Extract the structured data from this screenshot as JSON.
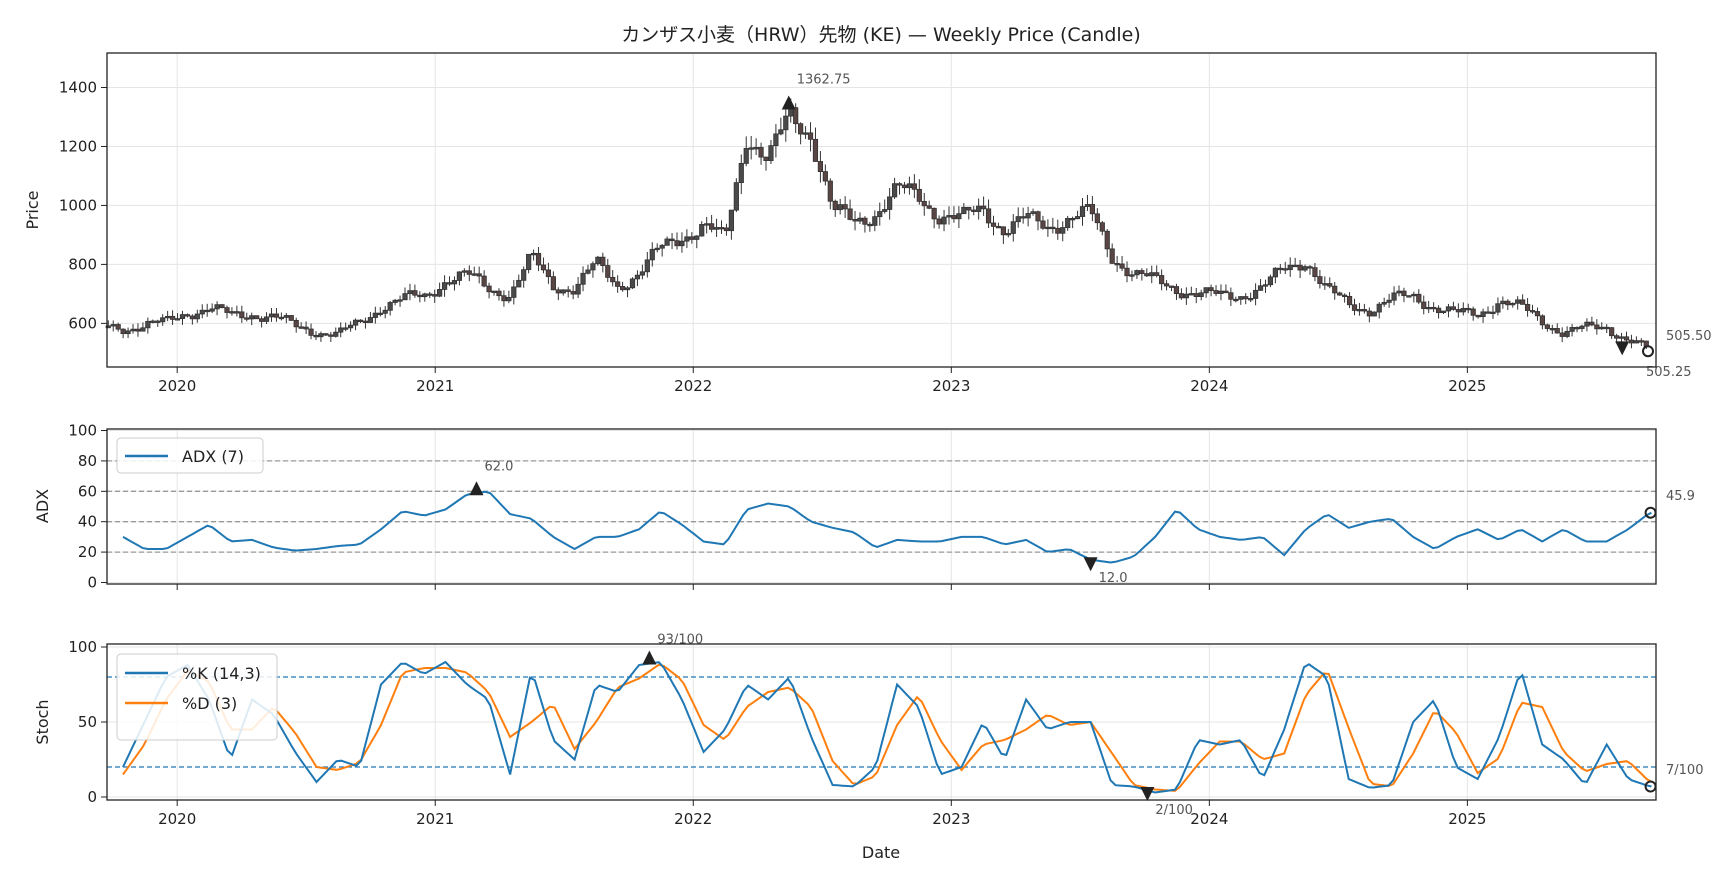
{
  "chart_data": [
    {
      "type": "candlestick",
      "title": "カンザス小麦（HRW）先物 (KE) — Weekly Price (Candle)",
      "ylabel": "Price",
      "ylim": [
        452,
        1517
      ],
      "yticks": [
        600,
        800,
        1000,
        1200,
        1400
      ],
      "monthly_close_start": "2019-10",
      "monthly_close": [
        585,
        595,
        600,
        640,
        650,
        625,
        635,
        620,
        590,
        575,
        560,
        600,
        660,
        680,
        690,
        750,
        760,
        720,
        700,
        820,
        730,
        720,
        800,
        730,
        770,
        850,
        900,
        930,
        880,
        1250,
        1150,
        1300,
        1250,
        980,
        940,
        980,
        1050,
        1030,
        970,
        950,
        990,
        920,
        950,
        930,
        960,
        970,
        830,
        770,
        740,
        720,
        700,
        690,
        700,
        720,
        780,
        820,
        710,
        660,
        650,
        680,
        690,
        660,
        630,
        630,
        680,
        650,
        610,
        570,
        580,
        590,
        545,
        505.5
      ],
      "annotations": {
        "max_label": "1362.75",
        "max_value": 1362.75,
        "max_x": 2022.37,
        "last_close_label": "505.50",
        "last_low_label": "505.25",
        "last_close": 505.5
      }
    },
    {
      "type": "line",
      "ylabel": "ADX",
      "ylim": [
        -1,
        101
      ],
      "yticks": [
        0,
        20,
        40,
        60,
        80,
        100
      ],
      "hlines": [
        20,
        40,
        60,
        80
      ],
      "legend": [
        "ADX (7)"
      ],
      "legend_position": "upper-left",
      "series": [
        {
          "name": "ADX (7)",
          "color": "#1f77b4",
          "values": [
            30,
            22,
            22,
            30,
            38,
            27,
            28,
            23,
            21,
            22,
            24,
            25,
            35,
            47,
            44,
            48,
            58,
            60,
            45,
            42,
            30,
            22,
            30,
            30,
            35,
            47,
            38,
            27,
            25,
            48,
            52,
            50,
            40,
            36,
            33,
            23,
            28,
            27,
            27,
            30,
            30,
            25,
            28,
            20,
            22,
            15,
            13,
            17,
            30,
            48,
            35,
            30,
            28,
            30,
            18,
            35,
            45,
            36,
            40,
            42,
            30,
            22,
            30,
            35,
            28,
            35,
            27,
            35,
            27,
            27,
            35,
            45.9
          ]
        }
      ],
      "annotations": {
        "max_label": "62.0",
        "max_x": 2021.16,
        "max_value": 62,
        "min_label": "12.0",
        "min_x": 2023.54,
        "min_value": 12,
        "last_label": "45.9"
      }
    },
    {
      "type": "line",
      "ylabel": "Stoch",
      "xlabel": "Date",
      "ylim": [
        -2,
        102
      ],
      "yticks": [
        0,
        50,
        100
      ],
      "hlines": [
        20,
        80
      ],
      "legend": [
        "%K (14,3)",
        "%D (3)"
      ],
      "legend_position": "upper-left",
      "series": [
        {
          "name": "%K (14,3)",
          "color": "#1f77b4",
          "values": [
            20,
            50,
            80,
            88,
            65,
            25,
            65,
            55,
            30,
            10,
            25,
            20,
            75,
            90,
            82,
            90,
            75,
            65,
            15,
            85,
            38,
            25,
            75,
            70,
            88,
            90,
            65,
            30,
            45,
            75,
            65,
            80,
            40,
            8,
            7,
            20,
            75,
            60,
            15,
            20,
            50,
            25,
            65,
            45,
            50,
            50,
            8,
            7,
            3,
            5,
            38,
            35,
            38,
            12,
            45,
            90,
            80,
            12,
            6,
            8,
            50,
            65,
            20,
            12,
            40,
            85,
            35,
            25,
            8,
            35,
            12,
            7
          ]
        },
        {
          "name": "%D (3)",
          "color": "#ff7f0e",
          "values": [
            15,
            35,
            65,
            84,
            77,
            45,
            45,
            60,
            43,
            20,
            18,
            23,
            48,
            83,
            86,
            86,
            83,
            70,
            40,
            50,
            62,
            32,
            50,
            73,
            79,
            89,
            78,
            48,
            38,
            60,
            70,
            73,
            60,
            24,
            8,
            14,
            48,
            68,
            38,
            18,
            35,
            38,
            45,
            55,
            48,
            50,
            29,
            8,
            5,
            4,
            22,
            37,
            37,
            25,
            29,
            68,
            85,
            46,
            9,
            7,
            29,
            58,
            43,
            16,
            26,
            63,
            60,
            30,
            17,
            22,
            24,
            10
          ]
        }
      ],
      "annotations": {
        "max_label": "93/100",
        "max_x": 2021.83,
        "max_value": 93,
        "min_label": "2/100",
        "min_x": 2023.76,
        "min_value": 2,
        "last_label": "7/100"
      }
    }
  ],
  "xaxis": {
    "ticks": [
      "2020",
      "2021",
      "2022",
      "2023",
      "2024",
      "2025"
    ],
    "tick_years": [
      2020,
      2021,
      2022,
      2023,
      2024,
      2025
    ],
    "xlim": [
      2019.728,
      2025.731
    ]
  }
}
